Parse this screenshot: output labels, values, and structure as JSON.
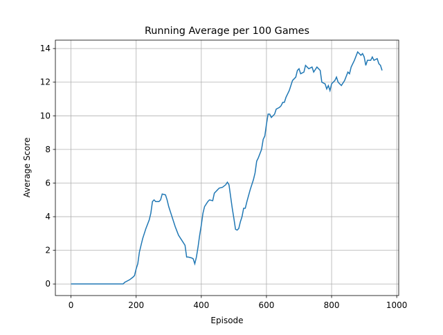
{
  "chart_data": {
    "type": "line",
    "title": "Running Average per 100 Games",
    "xlabel": "Episode",
    "ylabel": "Average Score",
    "x": [
      0,
      160,
      165,
      180,
      190,
      195,
      200,
      205,
      210,
      215,
      220,
      230,
      240,
      245,
      250,
      255,
      260,
      270,
      275,
      280,
      290,
      295,
      300,
      310,
      320,
      330,
      340,
      350,
      355,
      360,
      370,
      375,
      380,
      385,
      390,
      395,
      400,
      405,
      410,
      420,
      425,
      435,
      440,
      450,
      455,
      465,
      475,
      480,
      485,
      490,
      495,
      500,
      505,
      510,
      515,
      520,
      525,
      530,
      535,
      540,
      550,
      560,
      565,
      570,
      575,
      585,
      590,
      595,
      600,
      605,
      610,
      615,
      625,
      630,
      640,
      645,
      650,
      655,
      660,
      670,
      680,
      690,
      695,
      700,
      705,
      715,
      720,
      730,
      740,
      745,
      755,
      765,
      770,
      780,
      785,
      790,
      795,
      800,
      810,
      815,
      820,
      830,
      840,
      850,
      855,
      860,
      870,
      880,
      890,
      895,
      900,
      905,
      910,
      920,
      925,
      930,
      940,
      945,
      950,
      955
    ],
    "values": [
      0,
      0,
      0.1,
      0.25,
      0.4,
      0.5,
      0.9,
      1.2,
      1.9,
      2.3,
      2.7,
      3.3,
      3.8,
      4.2,
      4.9,
      5.0,
      4.9,
      4.9,
      5.0,
      5.35,
      5.3,
      5.0,
      4.6,
      4.0,
      3.4,
      2.9,
      2.6,
      2.3,
      1.6,
      1.6,
      1.55,
      1.5,
      1.2,
      1.6,
      2.2,
      2.9,
      3.5,
      4.2,
      4.6,
      4.9,
      5.0,
      4.95,
      5.4,
      5.6,
      5.7,
      5.75,
      5.9,
      6.05,
      5.9,
      5.2,
      4.5,
      3.9,
      3.25,
      3.2,
      3.3,
      3.7,
      4.0,
      4.5,
      4.5,
      4.9,
      5.6,
      6.2,
      6.6,
      7.3,
      7.5,
      8.0,
      8.6,
      8.8,
      9.5,
      10.1,
      10.1,
      9.9,
      10.1,
      10.4,
      10.5,
      10.6,
      10.8,
      10.8,
      11.1,
      11.5,
      12.1,
      12.3,
      12.7,
      12.8,
      12.5,
      12.6,
      13.0,
      12.8,
      12.9,
      12.6,
      12.9,
      12.7,
      12.0,
      11.9,
      11.6,
      11.8,
      11.5,
      11.9,
      12.1,
      12.3,
      12.0,
      11.8,
      12.1,
      12.6,
      12.5,
      12.9,
      13.3,
      13.8,
      13.6,
      13.7,
      13.5,
      13.0,
      13.3,
      13.3,
      13.5,
      13.3,
      13.4,
      13.1,
      13.0,
      12.7
    ],
    "color": "#1f77b4",
    "xlim": [
      -48,
      1006
    ],
    "ylim": [
      -0.69,
      14.5
    ],
    "xticks": [
      0,
      200,
      400,
      600,
      800,
      1000
    ],
    "yticks": [
      0,
      2,
      4,
      6,
      8,
      10,
      12,
      14
    ],
    "grid": true
  }
}
